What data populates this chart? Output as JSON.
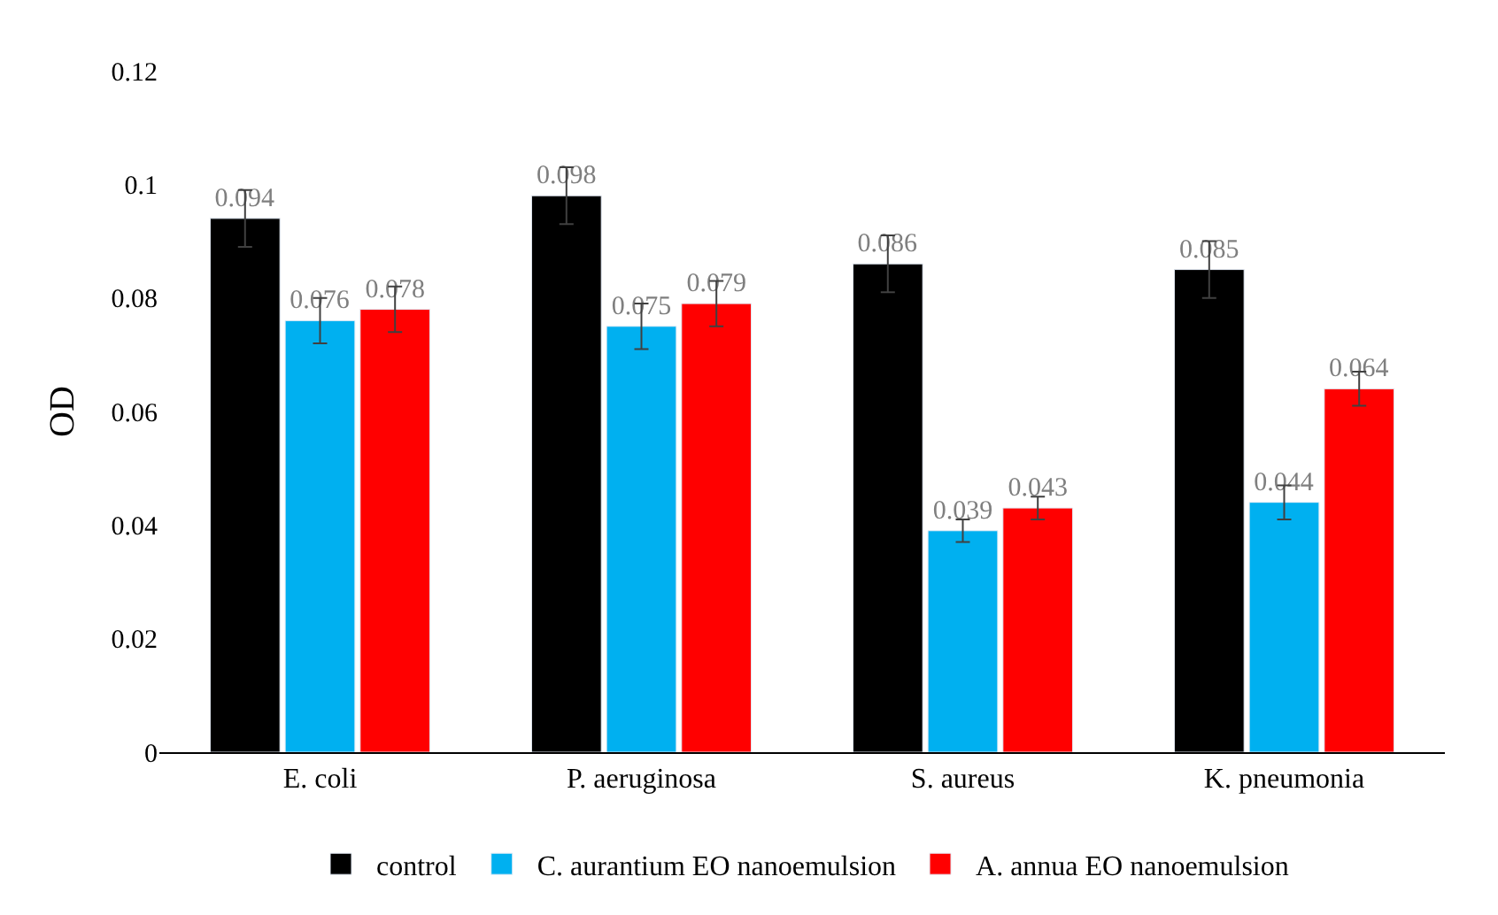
{
  "chart_data": {
    "type": "bar",
    "ylabel": "OD",
    "categories": [
      "E. coli",
      "P. aeruginosa",
      "S. aureus",
      "K. pneumonia"
    ],
    "series": [
      {
        "name": "control",
        "color": "#000000",
        "values": [
          0.094,
          0.098,
          0.086,
          0.085
        ],
        "errors": [
          0.005,
          0.005,
          0.005,
          0.005
        ]
      },
      {
        "name": "C. aurantium EO nanoemulsion",
        "color": "#00b0f0",
        "values": [
          0.076,
          0.075,
          0.039,
          0.044
        ],
        "errors": [
          0.004,
          0.004,
          0.002,
          0.003
        ]
      },
      {
        "name": "A. annua EO nanoemulsion",
        "color": "#ff0000",
        "values": [
          0.078,
          0.079,
          0.043,
          0.064
        ],
        "errors": [
          0.004,
          0.004,
          0.002,
          0.003
        ]
      }
    ],
    "ylim": [
      0,
      0.12
    ],
    "yticks": [
      0,
      0.02,
      0.04,
      0.06,
      0.08,
      0.1,
      0.12
    ],
    "legend": "bottom",
    "data_labels": true
  }
}
